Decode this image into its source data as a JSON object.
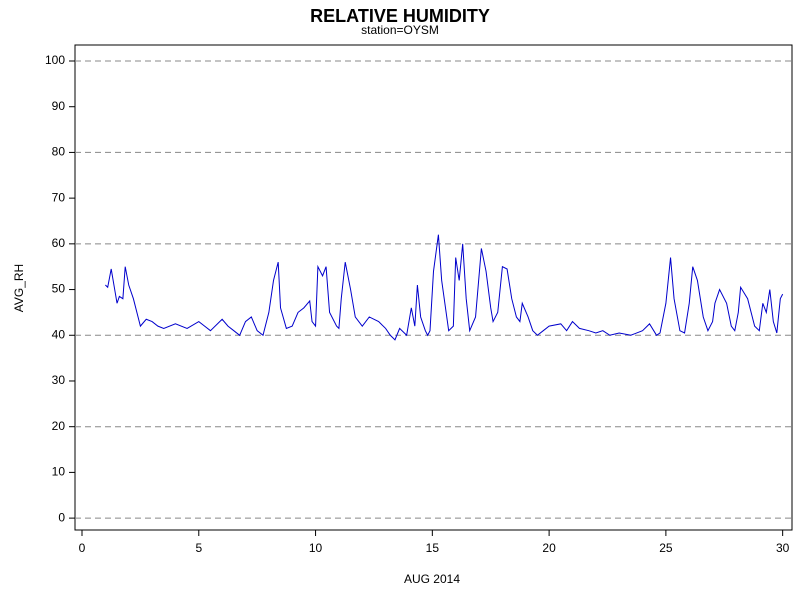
{
  "chart_data": {
    "type": "line",
    "title": "RELATIVE HUMIDITY",
    "subtitle": "station=OYSM",
    "x_label": "AUG 2014",
    "y_label": "AVG_RH",
    "xlim": [
      -0.3,
      30.4
    ],
    "ylim": [
      -2.6,
      103.5
    ],
    "xticks": [
      0,
      5,
      10,
      15,
      20,
      25,
      30
    ],
    "yticks": [
      0,
      10,
      20,
      30,
      40,
      50,
      60,
      70,
      80,
      90,
      100
    ],
    "grid_lines": [
      0,
      20,
      40,
      60,
      80,
      100
    ],
    "series": [
      {
        "name": "AVG_RH",
        "color": "#0000cc",
        "x": [
          1.0,
          1.1,
          1.25,
          1.4,
          1.5,
          1.6,
          1.75,
          1.85,
          2.0,
          2.2,
          2.4,
          2.5,
          2.75,
          3.0,
          3.25,
          3.5,
          4.0,
          4.5,
          5.0,
          5.25,
          5.5,
          6.0,
          6.25,
          6.5,
          6.75,
          7.0,
          7.25,
          7.5,
          7.75,
          8.0,
          8.2,
          8.4,
          8.5,
          8.75,
          9.0,
          9.25,
          9.5,
          9.75,
          9.85,
          10.0,
          10.1,
          10.3,
          10.45,
          10.6,
          10.9,
          11.0,
          11.1,
          11.27,
          11.5,
          11.7,
          12.0,
          12.3,
          12.7,
          13.0,
          13.2,
          13.4,
          13.6,
          13.9,
          14.1,
          14.25,
          14.36,
          14.5,
          14.7,
          14.8,
          14.9,
          15.05,
          15.26,
          15.4,
          15.7,
          15.9,
          16.0,
          16.15,
          16.3,
          16.45,
          16.6,
          16.85,
          17.1,
          17.3,
          17.5,
          17.6,
          17.8,
          18.0,
          18.2,
          18.4,
          18.6,
          18.75,
          18.85,
          19.1,
          19.3,
          19.5,
          19.75,
          20.0,
          20.5,
          20.75,
          21.0,
          21.3,
          21.7,
          22.0,
          22.3,
          22.6,
          23.0,
          23.5,
          24.0,
          24.3,
          24.6,
          24.75,
          25.0,
          25.2,
          25.35,
          25.6,
          25.8,
          26.0,
          26.15,
          26.35,
          26.6,
          26.8,
          27.0,
          27.1,
          27.3,
          27.6,
          27.8,
          27.95,
          28.1,
          28.2,
          28.5,
          28.8,
          29.0,
          29.15,
          29.3,
          29.45,
          29.6,
          29.75,
          29.9,
          30.0
        ],
        "values": [
          51,
          50.5,
          54.5,
          50,
          47,
          48.5,
          48,
          55,
          51,
          48,
          44,
          42,
          43.5,
          43,
          42,
          41.5,
          42.5,
          41.5,
          43,
          42,
          41,
          43.5,
          42,
          41,
          40,
          43,
          44,
          41,
          40,
          45,
          52,
          56,
          46,
          41.5,
          42,
          45,
          46,
          47.5,
          43,
          42,
          55,
          53,
          55,
          45,
          42,
          41.5,
          48,
          56,
          50,
          44,
          42,
          44,
          43,
          41.5,
          40,
          39,
          41.5,
          40,
          46,
          42,
          51,
          44,
          41,
          40,
          41,
          54,
          62,
          52,
          41,
          42,
          57,
          52,
          60,
          48,
          41,
          44,
          59,
          54,
          46,
          43,
          45,
          55,
          54.5,
          48,
          44,
          43,
          47,
          44,
          41,
          40,
          41,
          42,
          42.5,
          41,
          43,
          41.5,
          41,
          40.5,
          41,
          40,
          40.5,
          40,
          41,
          42.5,
          40,
          40.5,
          47,
          57,
          48,
          41,
          40.5,
          47,
          55,
          52,
          44,
          41,
          43,
          47,
          50,
          47,
          42,
          41,
          45,
          50.5,
          48,
          42,
          41,
          47,
          45,
          50,
          43,
          40.5,
          48,
          49
        ]
      }
    ]
  }
}
